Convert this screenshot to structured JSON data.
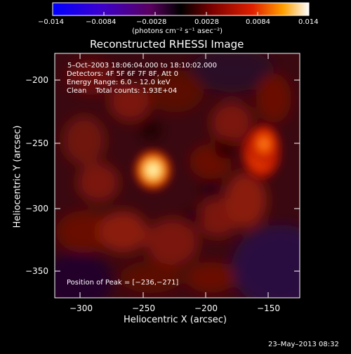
{
  "colorbar": {
    "ticks": [
      "−0.014",
      "−0.0084",
      "−0.0028",
      "0.0028",
      "0.0084",
      "0.014"
    ],
    "units": "(photons cm⁻² s⁻¹ asec⁻²)",
    "range": [
      -0.014,
      0.014
    ]
  },
  "title": "Reconstructed RHESSI Image",
  "overlay": {
    "line1": "5–Oct–2003 18:06:04.000 to 18:10:02.000",
    "line2": "Detectors: 4F 5F 6F 7F 8F, Att 0",
    "line3": "Energy Range: 6.0 – 12.0 keV",
    "line4": "Clean    Total counts: 1.93E+04",
    "peak": "Position of Peak = [−236,−271]"
  },
  "axes": {
    "xlabel": "Heliocentric X (arcsec)",
    "ylabel": "Heliocentric Y (arcsec)",
    "xticks": [
      "−300",
      "−250",
      "−200",
      "−150"
    ],
    "yticks": [
      "−200",
      "−250",
      "−300",
      "−350"
    ],
    "xlim": [
      -320,
      -127
    ],
    "ylim": [
      -372,
      -179
    ]
  },
  "image": {
    "sources": [
      {
        "x": -236,
        "y": -271,
        "intensity": 0.014
      },
      {
        "x": -155,
        "y": -246,
        "intensity": 0.0092
      },
      {
        "x": -150,
        "y": -226,
        "intensity": 0.0065
      }
    ]
  },
  "timestamp": "23–May–2013 08:32"
}
